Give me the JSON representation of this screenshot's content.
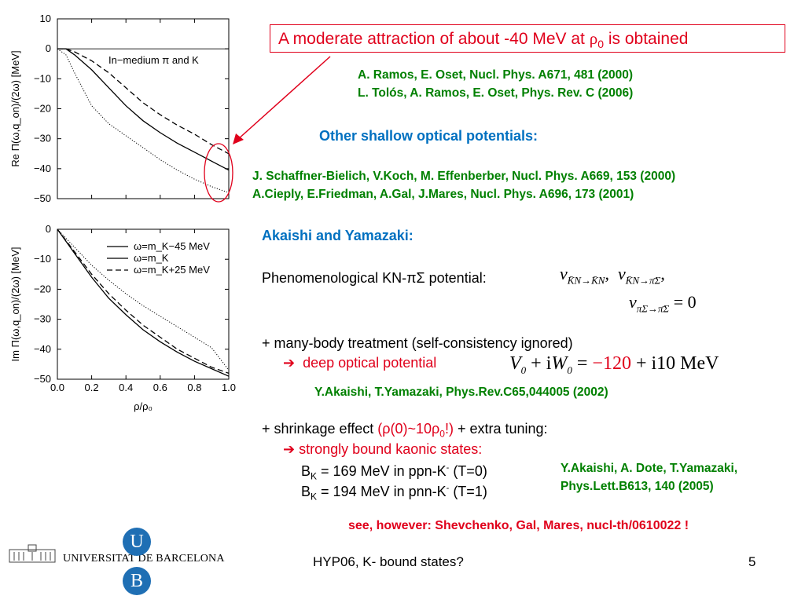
{
  "callout": {
    "text_before": "A moderate attraction of about -40 MeV at ",
    "rho": "ρ",
    "sub0": "0",
    "text_after": " is obtained"
  },
  "refs_main": [
    "A. Ramos, E. Oset, Nucl. Phys. A671, 481 (2000)",
    "L. Tolós, A. Ramos, E. Oset, Phys. Rev. C (2006)"
  ],
  "other_heading": "Other shallow optical potentials:",
  "refs_other": [
    "J. Schaffner-Bielich, V.Koch, M. Effenberber, Nucl. Phys. A669, 153 (2000)",
    "A.Cieply, E.Friedman, A.Gal, J.Mares, Nucl. Phys. A696, 173 (2001)"
  ],
  "akaishi_heading": "Akaishi and Yamazaki:",
  "phenom": {
    "label": "Phenomenological KN-πΣ potential:",
    "v": "v",
    "sub1": "K̄N→K̄N",
    "sub2": "K̄N→π̄Σ",
    "sub3": "πΣ→π̄Σ",
    "eq_zero": "= 0"
  },
  "many_body": "+ many-body treatment (self-consistency ignored)",
  "deep_opt": "deep optical potential",
  "deep_eq": {
    "v0": "V",
    "sub0": "0",
    "plus_i": "+ i",
    "w0": "W",
    "eq": "=",
    "val": "−120",
    "rest": "+ i10 MeV"
  },
  "ref_akaishi_2002": "Y.Akaishi, T.Yamazaki, Phys.Rev.C65,044005 (2002)",
  "shrink": {
    "before": "+ shrinkage effect ",
    "paren": "(ρ(0)~10ρ",
    "sub0": "0",
    "paren_end": "!)",
    "after": " + extra tuning:"
  },
  "strongly": "strongly bound kaonic states:",
  "bk_lines": [
    {
      "b": "B",
      "sub": "K",
      "rest": " = 169 MeV in ppn-K",
      "sup": "-",
      "tail": " (T=0)"
    },
    {
      "b": "B",
      "sub": "K",
      "rest": " = 194 MeV in pnn-K",
      "sup": "-",
      "tail": " (T=1)"
    }
  ],
  "ref_2005": [
    "Y.Akaishi, A. Dote, T.Yamazaki,",
    "Phys.Lett.B613, 140 (2005)"
  ],
  "see_however": "see, however: Shevchenko, Gal, Mares, nucl-th/0610022 !",
  "footer": {
    "university": "UNIVERSITAT DE BARCELONA",
    "logo_u": "U",
    "logo_b": "B",
    "center": "HYP06, K- bound states?",
    "page": "5"
  },
  "colors": {
    "red": "#e0001b",
    "green": "#008000",
    "blue": "#0070c0",
    "ub_blue": "#1f6fb4"
  },
  "chart_data": [
    {
      "type": "line",
      "panel": "top",
      "legend_text": "In−medium π and K",
      "ylabel": "Re Π(ω,q_on)/(2ω) [MeV]",
      "ylim": [
        -50,
        10
      ],
      "xlim": [
        0,
        1
      ],
      "yticks": [
        "10",
        "0",
        "−10",
        "−20",
        "−30",
        "−40",
        "−50"
      ],
      "series": [
        {
          "style": "dashed",
          "x": [
            0,
            0.05,
            0.1,
            0.2,
            0.3,
            0.4,
            0.5,
            0.6,
            0.7,
            0.8,
            0.9,
            1.0
          ],
          "values": [
            0,
            0,
            -1,
            -4,
            -8,
            -13,
            -18,
            -22,
            -25.5,
            -28.5,
            -32,
            -35
          ]
        },
        {
          "style": "solid",
          "x": [
            0,
            0.05,
            0.1,
            0.2,
            0.3,
            0.4,
            0.5,
            0.6,
            0.7,
            0.8,
            0.9,
            1.0
          ],
          "values": [
            0,
            0,
            -2,
            -7,
            -13,
            -19,
            -24,
            -28,
            -31.5,
            -34.5,
            -37.5,
            -40.5
          ]
        },
        {
          "style": "dotted",
          "x": [
            0,
            0.05,
            0.1,
            0.2,
            0.3,
            0.4,
            0.5,
            0.6,
            0.7,
            0.8,
            0.9,
            1.0
          ],
          "values": [
            0,
            -2,
            -8,
            -19,
            -25,
            -29,
            -33,
            -37,
            -40.5,
            -43.5,
            -46,
            -48
          ]
        }
      ]
    },
    {
      "type": "line",
      "panel": "bottom",
      "xlabel": "ρ/ρ₀",
      "ylabel": "Im Π(ω,q_on)/(2ω) [MeV]",
      "ylim": [
        -50,
        0
      ],
      "xlim": [
        0,
        1
      ],
      "xticks": [
        "0.0",
        "0.2",
        "0.4",
        "0.6",
        "0.8",
        "1.0"
      ],
      "yticks": [
        "0",
        "−10",
        "−20",
        "−30",
        "−40",
        "−50"
      ],
      "legend": [
        "ω=m_K−45 MeV",
        "ω=m_K",
        "ω=m_K+25 MeV"
      ],
      "series": [
        {
          "name": "ω=m_K−45 MeV",
          "style": "dotted",
          "x": [
            0,
            0.1,
            0.2,
            0.3,
            0.4,
            0.5,
            0.6,
            0.7,
            0.8,
            0.9,
            1.0
          ],
          "values": [
            0,
            -6,
            -12,
            -17,
            -21.5,
            -25.5,
            -29,
            -32.5,
            -36,
            -39.5,
            -47
          ]
        },
        {
          "name": "ω=m_K",
          "style": "solid",
          "x": [
            0,
            0.1,
            0.2,
            0.3,
            0.4,
            0.5,
            0.6,
            0.7,
            0.8,
            0.9,
            1.0
          ],
          "values": [
            0,
            -8,
            -16,
            -23,
            -28.5,
            -33.5,
            -37.5,
            -41,
            -44,
            -46.5,
            -49
          ]
        },
        {
          "name": "ω=m_K+25 MeV",
          "style": "dashed",
          "x": [
            0,
            0.1,
            0.2,
            0.3,
            0.4,
            0.5,
            0.6,
            0.7,
            0.8,
            0.9,
            1.0
          ],
          "values": [
            0,
            -7.5,
            -15,
            -21.5,
            -27,
            -32,
            -36,
            -40,
            -43,
            -46,
            -48
          ]
        }
      ]
    }
  ]
}
